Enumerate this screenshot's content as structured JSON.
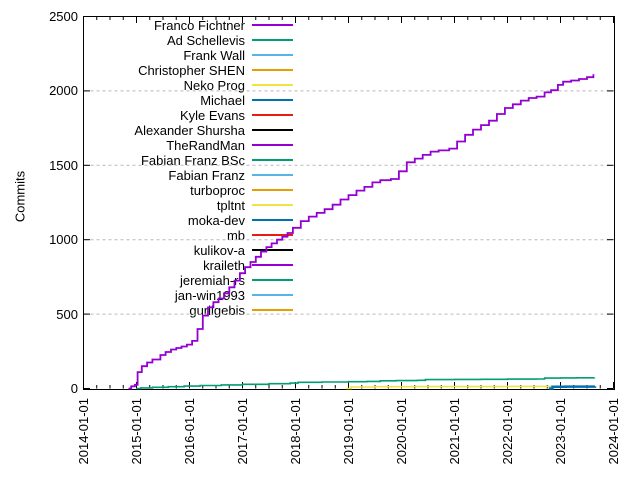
{
  "figure": {
    "background_color": "#ffffff",
    "border_color": "#000000",
    "grid_color": "#b9b9b9",
    "text_color": "#000000"
  },
  "chart_data": {
    "type": "line",
    "title": "",
    "xlabel": "",
    "ylabel": "Commits",
    "x_tick_labels": [
      "2014-01-01",
      "2015-01-01",
      "2016-01-01",
      "2017-01-01",
      "2018-01-01",
      "2019-01-01",
      "2020-01-01",
      "2021-01-01",
      "2022-01-01",
      "2023-01-01",
      "2024-01-01"
    ],
    "y_ticks": [
      0,
      500,
      1000,
      1500,
      2000,
      2500
    ],
    "ylim": [
      0,
      2500
    ],
    "x_range_years": [
      2014,
      2024
    ],
    "x_minor_ticks_per_year": 4,
    "grid": "horizontal dashed at y ticks",
    "legend_position": "top-left inside plot, right-aligned labels with line samples",
    "line_style": "cumulative step lines",
    "series": [
      {
        "name": "Franco Fichtner",
        "color": "#9400D3",
        "linewidth": 1.8,
        "points": [
          [
            2014.85,
            0
          ],
          [
            2014.9,
            15
          ],
          [
            2014.97,
            25
          ],
          [
            2015.02,
            110
          ],
          [
            2015.1,
            150
          ],
          [
            2015.2,
            175
          ],
          [
            2015.3,
            195
          ],
          [
            2015.45,
            225
          ],
          [
            2015.55,
            245
          ],
          [
            2015.65,
            262
          ],
          [
            2015.75,
            272
          ],
          [
            2015.85,
            282
          ],
          [
            2015.95,
            295
          ],
          [
            2016.05,
            320
          ],
          [
            2016.15,
            400
          ],
          [
            2016.25,
            490
          ],
          [
            2016.35,
            545
          ],
          [
            2016.45,
            580
          ],
          [
            2016.55,
            605
          ],
          [
            2016.65,
            640
          ],
          [
            2016.75,
            680
          ],
          [
            2016.85,
            725
          ],
          [
            2016.95,
            775
          ],
          [
            2017.05,
            815
          ],
          [
            2017.15,
            850
          ],
          [
            2017.25,
            885
          ],
          [
            2017.35,
            920
          ],
          [
            2017.45,
            950
          ],
          [
            2017.55,
            975
          ],
          [
            2017.65,
            1000
          ],
          [
            2017.75,
            1020
          ],
          [
            2017.85,
            1045
          ],
          [
            2017.95,
            1080
          ],
          [
            2018.1,
            1125
          ],
          [
            2018.25,
            1155
          ],
          [
            2018.4,
            1180
          ],
          [
            2018.55,
            1205
          ],
          [
            2018.7,
            1235
          ],
          [
            2018.85,
            1270
          ],
          [
            2019.0,
            1300
          ],
          [
            2019.15,
            1330
          ],
          [
            2019.3,
            1355
          ],
          [
            2019.45,
            1385
          ],
          [
            2019.6,
            1400
          ],
          [
            2019.8,
            1408
          ],
          [
            2019.95,
            1460
          ],
          [
            2020.1,
            1520
          ],
          [
            2020.25,
            1545
          ],
          [
            2020.4,
            1570
          ],
          [
            2020.55,
            1592
          ],
          [
            2020.7,
            1600
          ],
          [
            2020.9,
            1612
          ],
          [
            2021.05,
            1660
          ],
          [
            2021.2,
            1705
          ],
          [
            2021.35,
            1740
          ],
          [
            2021.5,
            1770
          ],
          [
            2021.65,
            1800
          ],
          [
            2021.8,
            1845
          ],
          [
            2021.95,
            1885
          ],
          [
            2022.1,
            1910
          ],
          [
            2022.25,
            1935
          ],
          [
            2022.4,
            1952
          ],
          [
            2022.55,
            1962
          ],
          [
            2022.7,
            1990
          ],
          [
            2022.82,
            2005
          ],
          [
            2022.95,
            2040
          ],
          [
            2023.05,
            2062
          ],
          [
            2023.2,
            2070
          ],
          [
            2023.35,
            2080
          ],
          [
            2023.5,
            2092
          ],
          [
            2023.62,
            2112
          ]
        ]
      },
      {
        "name": "Ad Schellevis",
        "color": "#009E73",
        "linewidth": 1.6,
        "points": [
          [
            2015.0,
            0
          ],
          [
            2015.08,
            4
          ],
          [
            2015.3,
            8
          ],
          [
            2015.6,
            12
          ],
          [
            2015.9,
            16
          ],
          [
            2016.2,
            20
          ],
          [
            2016.6,
            24
          ],
          [
            2017.0,
            28
          ],
          [
            2017.5,
            32
          ],
          [
            2017.9,
            36
          ],
          [
            2018.05,
            42
          ],
          [
            2018.5,
            44
          ],
          [
            2019.0,
            46
          ],
          [
            2019.35,
            48
          ],
          [
            2019.6,
            52
          ],
          [
            2019.9,
            53
          ],
          [
            2020.3,
            55
          ],
          [
            2020.45,
            60
          ],
          [
            2021.0,
            61
          ],
          [
            2021.5,
            62
          ],
          [
            2022.0,
            63
          ],
          [
            2022.55,
            64
          ],
          [
            2022.7,
            70
          ],
          [
            2023.0,
            71
          ],
          [
            2023.3,
            72
          ],
          [
            2023.64,
            73
          ]
        ]
      },
      {
        "name": "Frank Wall",
        "color": "#56B4E9",
        "linewidth": 1.6,
        "points": [],
        "note": "line indistinguishable from baseline (~0) in image"
      },
      {
        "name": "Christopher SHEN",
        "color": "#E69F00",
        "linewidth": 1.6,
        "points": [],
        "note": "line indistinguishable from baseline (~0) in image"
      },
      {
        "name": "Neko Prog",
        "color": "#F0E442",
        "linewidth": 1.6,
        "points": [
          [
            2018.95,
            0
          ],
          [
            2019.05,
            10
          ],
          [
            2019.5,
            12
          ],
          [
            2020.2,
            13
          ],
          [
            2021.0,
            13
          ],
          [
            2022.0,
            14
          ],
          [
            2022.8,
            15
          ],
          [
            2023.62,
            15
          ]
        ]
      },
      {
        "name": "Michael",
        "color": "#0072B2",
        "linewidth": 2.5,
        "points": [
          [
            2022.78,
            0
          ],
          [
            2022.85,
            12
          ],
          [
            2023.1,
            13
          ],
          [
            2023.65,
            14
          ]
        ]
      },
      {
        "name": "Kyle Evans",
        "color": "#E51E10",
        "linewidth": 1.6,
        "points": [],
        "note": "line indistinguishable from baseline (~0) in image"
      },
      {
        "name": "Alexander Shursha",
        "color": "#000000",
        "linewidth": 1.6,
        "points": [],
        "note": "line indistinguishable from baseline (~0) in image"
      },
      {
        "name": "TheRandMan",
        "color": "#9400D3",
        "linewidth": 1.6,
        "points": [],
        "note": "line indistinguishable from baseline (~0) in image"
      },
      {
        "name": "Fabian Franz BSc",
        "color": "#009E73",
        "linewidth": 1.6,
        "points": [],
        "note": "line indistinguishable from baseline (~0) in image"
      },
      {
        "name": "Fabian Franz",
        "color": "#56B4E9",
        "linewidth": 1.6,
        "points": [],
        "note": "line indistinguishable from baseline (~0) in image"
      },
      {
        "name": "turboproc",
        "color": "#E69F00",
        "linewidth": 1.6,
        "points": [],
        "note": "line indistinguishable from baseline (~0) in image"
      },
      {
        "name": "tpltnt",
        "color": "#F0E442",
        "linewidth": 1.6,
        "points": [],
        "note": "line indistinguishable from baseline (~0) in image"
      },
      {
        "name": "moka-dev",
        "color": "#0072B2",
        "linewidth": 1.6,
        "points": [],
        "note": "line indistinguishable from baseline (~0) in image"
      },
      {
        "name": "mb",
        "color": "#E51E10",
        "linewidth": 1.6,
        "points": [],
        "note": "line indistinguishable from baseline (~0) in image"
      },
      {
        "name": "kulikov-a",
        "color": "#000000",
        "linewidth": 1.6,
        "points": [],
        "note": "line indistinguishable from baseline (~0) in image"
      },
      {
        "name": "kraileth",
        "color": "#9400D3",
        "linewidth": 1.6,
        "points": [],
        "note": "line indistinguishable from baseline (~0) in image"
      },
      {
        "name": "jeremiah-rs",
        "color": "#009E73",
        "linewidth": 1.6,
        "points": [],
        "note": "line indistinguishable from baseline (~0) in image"
      },
      {
        "name": "jan-win1993",
        "color": "#56B4E9",
        "linewidth": 1.6,
        "points": [],
        "note": "line indistinguishable from baseline (~0) in image"
      },
      {
        "name": "gurligebis",
        "color": "#E69F00",
        "linewidth": 1.6,
        "points": [],
        "note": "line indistinguishable from baseline (~0) in image"
      }
    ]
  }
}
